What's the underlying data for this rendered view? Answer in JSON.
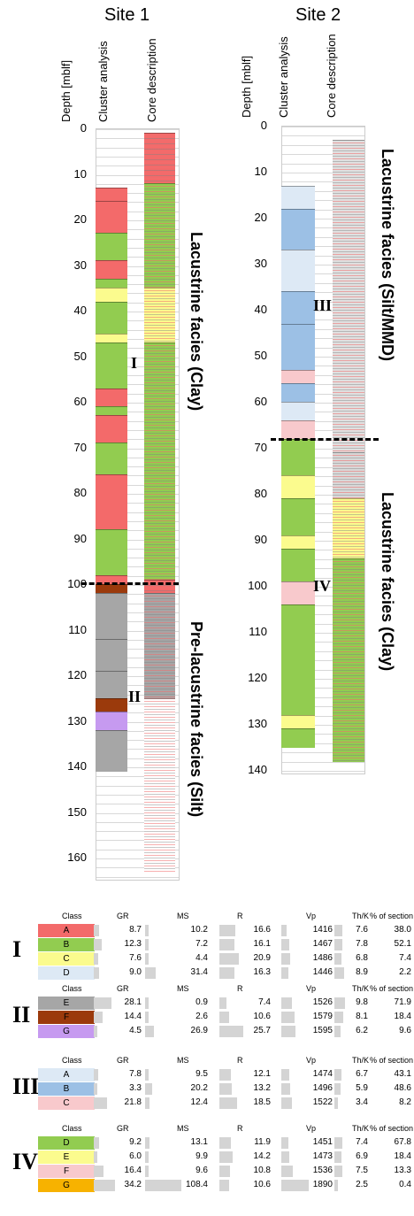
{
  "sites": [
    {
      "title": "Site 1",
      "headers": {
        "depth": "Depth [mblf]",
        "cluster": "Cluster analysis",
        "core": "Core description"
      },
      "depth_ticks": [
        "0",
        "10",
        "20",
        "30",
        "40",
        "50",
        "60",
        "70",
        "80",
        "90",
        "100",
        "110",
        "120",
        "130",
        "140",
        "150",
        "160"
      ],
      "facies": [
        "Lacustrine facies (Clay)",
        "Pre-lacustrine facies (Silt)"
      ],
      "zones": [
        "I",
        "II"
      ]
    },
    {
      "title": "Site 2",
      "headers": {
        "depth": "Depth [mblf]",
        "cluster": "Cluster analysis",
        "core": "Core description"
      },
      "depth_ticks": [
        "0",
        "10",
        "20",
        "30",
        "40",
        "50",
        "60",
        "70",
        "80",
        "90",
        "100",
        "110",
        "120",
        "130",
        "140"
      ],
      "facies": [
        "Lacustrine facies (Silt/MMD)",
        "Lacustrine facies (Clay)"
      ],
      "zones": [
        "III",
        "IV"
      ]
    }
  ],
  "table": {
    "headers": [
      "Class",
      "GR",
      "MS",
      "R",
      "Vp",
      "Th/K",
      "% of section"
    ],
    "groups": [
      {
        "roman": "I",
        "rows": [
          {
            "cls": "A",
            "color": "#f36a6a",
            "GR": "8.7",
            "MS": "10.2",
            "R": "16.6",
            "Vp": "1416",
            "ThK": "7.6",
            "pct": "38.0"
          },
          {
            "cls": "B",
            "color": "#92cc50",
            "GR": "12.3",
            "MS": "7.2",
            "R": "16.1",
            "Vp": "1467",
            "ThK": "7.8",
            "pct": "52.1"
          },
          {
            "cls": "C",
            "color": "#fbfb8e",
            "GR": "7.6",
            "MS": "4.4",
            "R": "20.9",
            "Vp": "1486",
            "ThK": "6.8",
            "pct": "7.4"
          },
          {
            "cls": "D",
            "color": "#dde9f5",
            "GR": "9.0",
            "MS": "31.4",
            "R": "16.3",
            "Vp": "1446",
            "ThK": "8.9",
            "pct": "2.2"
          }
        ]
      },
      {
        "roman": "II",
        "rows": [
          {
            "cls": "E",
            "color": "#a6a6a6",
            "GR": "28.1",
            "MS": "0.9",
            "R": "7.4",
            "Vp": "1526",
            "ThK": "9.8",
            "pct": "71.9"
          },
          {
            "cls": "F",
            "color": "#9b3a0c",
            "GR": "14.4",
            "MS": "2.6",
            "R": "10.6",
            "Vp": "1579",
            "ThK": "8.1",
            "pct": "18.4"
          },
          {
            "cls": "G",
            "color": "#c69af0",
            "GR": "4.5",
            "MS": "26.9",
            "R": "25.7",
            "Vp": "1595",
            "ThK": "6.2",
            "pct": "9.6"
          }
        ]
      },
      {
        "roman": "III",
        "rows": [
          {
            "cls": "A",
            "color": "#dde9f5",
            "GR": "7.8",
            "MS": "9.5",
            "R": "12.1",
            "Vp": "1474",
            "ThK": "6.7",
            "pct": "43.1"
          },
          {
            "cls": "B",
            "color": "#9cc0e5",
            "GR": "3.3",
            "MS": "20.2",
            "R": "13.2",
            "Vp": "1496",
            "ThK": "5.9",
            "pct": "48.6"
          },
          {
            "cls": "C",
            "color": "#f8c9cc",
            "GR": "21.8",
            "MS": "12.4",
            "R": "18.5",
            "Vp": "1522",
            "ThK": "3.4",
            "pct": "8.2"
          }
        ]
      },
      {
        "roman": "IV",
        "rows": [
          {
            "cls": "D",
            "color": "#92cc50",
            "GR": "9.2",
            "MS": "13.1",
            "R": "11.9",
            "Vp": "1451",
            "ThK": "7.4",
            "pct": "67.8"
          },
          {
            "cls": "E",
            "color": "#fbfb8e",
            "GR": "6.0",
            "MS": "9.9",
            "R": "14.2",
            "Vp": "1473",
            "ThK": "6.9",
            "pct": "18.4"
          },
          {
            "cls": "F",
            "color": "#f8c9cc",
            "GR": "16.4",
            "MS": "9.6",
            "R": "10.8",
            "Vp": "1536",
            "ThK": "7.5",
            "pct": "13.3"
          },
          {
            "cls": "G",
            "color": "#f7b200",
            "GR": "34.2",
            "MS": "108.4",
            "R": "10.6",
            "Vp": "1890",
            "ThK": "2.5",
            "pct": "0.4"
          }
        ]
      }
    ]
  },
  "cluster_units": {
    "site1": [
      [
        13,
        16,
        "#f36a6a"
      ],
      [
        16,
        23,
        "#f36a6a"
      ],
      [
        23,
        29,
        "#92cc50"
      ],
      [
        29,
        33,
        "#f36a6a"
      ],
      [
        33,
        35,
        "#92cc50"
      ],
      [
        35,
        38,
        "#fbfb8e"
      ],
      [
        38,
        45,
        "#92cc50"
      ],
      [
        45,
        47,
        "#fbfb8e"
      ],
      [
        47,
        57,
        "#92cc50"
      ],
      [
        57,
        61,
        "#f36a6a"
      ],
      [
        61,
        63,
        "#92cc50"
      ],
      [
        63,
        69,
        "#f36a6a"
      ],
      [
        69,
        76,
        "#92cc50"
      ],
      [
        76,
        88,
        "#f36a6a"
      ],
      [
        88,
        98,
        "#92cc50"
      ],
      [
        98,
        100,
        "#f36a6a"
      ],
      [
        100,
        102,
        "#9b3a0c"
      ],
      [
        102,
        112,
        "#a6a6a6"
      ],
      [
        112,
        119,
        "#a6a6a6"
      ],
      [
        119,
        125,
        "#a6a6a6"
      ],
      [
        125,
        128,
        "#9b3a0c"
      ],
      [
        128,
        132,
        "#c69af0"
      ],
      [
        132,
        141,
        "#a6a6a6"
      ]
    ],
    "site2": [
      [
        13,
        18,
        "#dde9f5"
      ],
      [
        18,
        27,
        "#9cc0e5"
      ],
      [
        27,
        36,
        "#dde9f5"
      ],
      [
        36,
        43,
        "#9cc0e5"
      ],
      [
        43,
        53,
        "#9cc0e5"
      ],
      [
        53,
        56,
        "#f8c9cc"
      ],
      [
        56,
        60,
        "#9cc0e5"
      ],
      [
        60,
        64,
        "#dde9f5"
      ],
      [
        64,
        68,
        "#f8c9cc"
      ],
      [
        68,
        76,
        "#92cc50"
      ],
      [
        76,
        81,
        "#fbfb8e"
      ],
      [
        81,
        89,
        "#92cc50"
      ],
      [
        89,
        92,
        "#fbfb8e"
      ],
      [
        92,
        99,
        "#92cc50"
      ],
      [
        99,
        104,
        "#f8c9cc"
      ],
      [
        104,
        128,
        "#92cc50"
      ],
      [
        128,
        131,
        "#fbfb8e"
      ],
      [
        131,
        135,
        "#92cc50"
      ]
    ]
  },
  "core_units": {
    "site1": [
      [
        1,
        12,
        "#f36a6a"
      ],
      [
        12,
        35,
        "#92cc50"
      ],
      [
        35,
        47,
        "#fbfb8e"
      ],
      [
        47,
        99,
        "#92cc50"
      ],
      [
        99,
        102,
        "#f36a6a"
      ],
      [
        102,
        125,
        "#a6a6a6"
      ],
      [
        125,
        163,
        "#ffffff"
      ]
    ],
    "site2": [
      [
        3,
        71,
        "#e0e0e0"
      ],
      [
        71,
        81,
        "#d8d8d8"
      ],
      [
        81,
        94,
        "#fbfb8e"
      ],
      [
        94,
        138,
        "#92cc50"
      ]
    ]
  }
}
